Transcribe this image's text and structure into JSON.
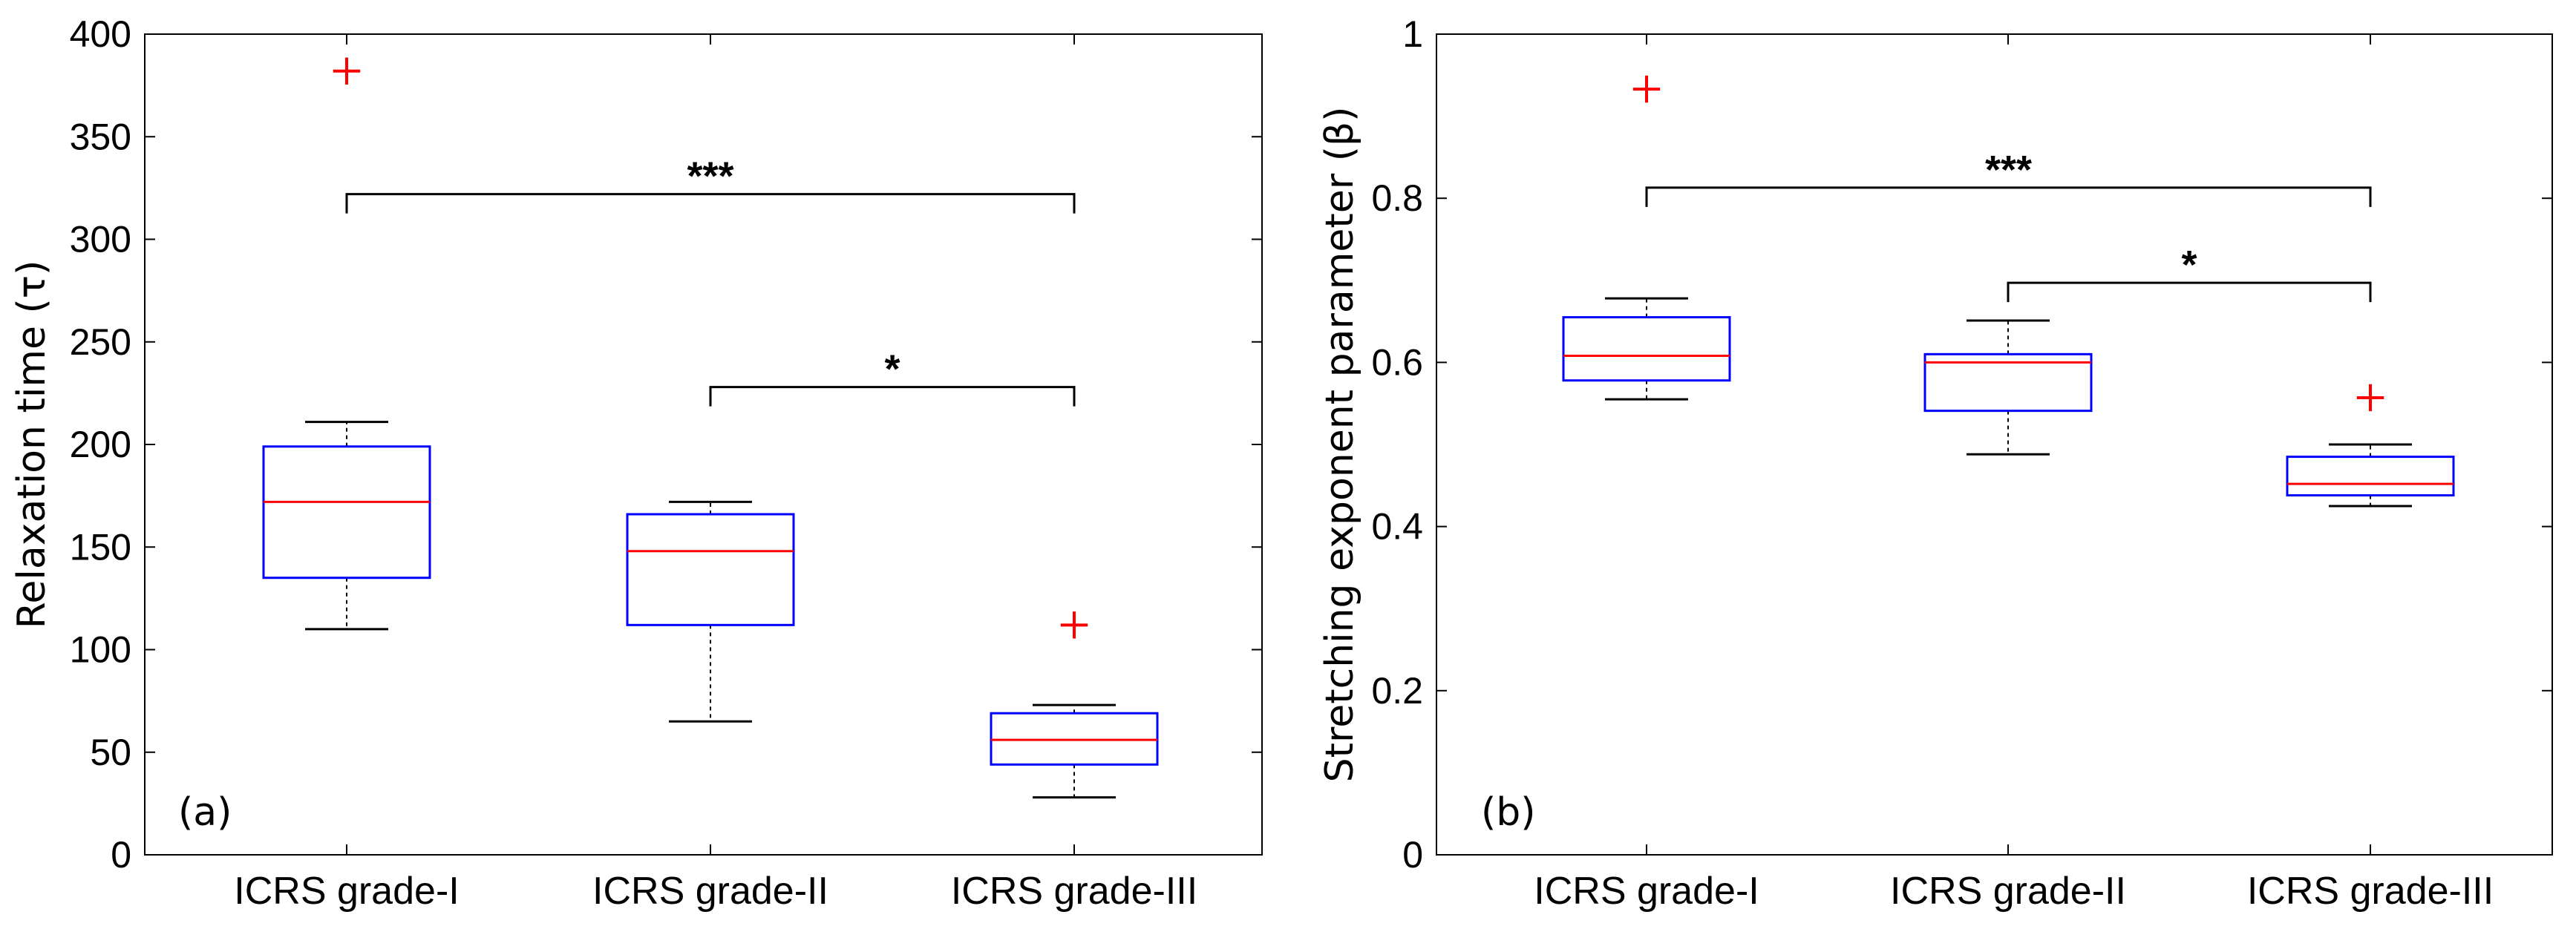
{
  "chart_data": [
    {
      "type": "boxplot",
      "panel_label": "(a)",
      "ylabel": "Relaxation time (τ)",
      "xlabel": "",
      "ylim": [
        0,
        400
      ],
      "yticks": [
        0,
        50,
        100,
        150,
        200,
        250,
        300,
        350,
        400
      ],
      "categories": [
        "ICRS grade-I",
        "ICRS grade-II",
        "ICRS grade-III"
      ],
      "boxes": [
        {
          "category": "ICRS grade-I",
          "whisker_low": 110,
          "q1": 135,
          "median": 172,
          "q3": 199,
          "whisker_high": 211,
          "outliers": [
            382
          ]
        },
        {
          "category": "ICRS grade-II",
          "whisker_low": 65,
          "q1": 112,
          "median": 148,
          "q3": 166,
          "whisker_high": 172,
          "outliers": []
        },
        {
          "category": "ICRS grade-III",
          "whisker_low": 28,
          "q1": 44,
          "median": 56,
          "q3": 69,
          "whisker_high": 73,
          "outliers": [
            112
          ]
        }
      ],
      "significance": [
        {
          "from": 0,
          "to": 2,
          "level": 322,
          "label": "***"
        },
        {
          "from": 1,
          "to": 2,
          "level": 228,
          "label": "*"
        }
      ],
      "colors": {
        "box": "#0000ff",
        "median": "#ff0000",
        "outlier": "#ff0000",
        "whisker": "#000000"
      }
    },
    {
      "type": "boxplot",
      "panel_label": "(b)",
      "ylabel": "Stretching exponent parameter (β)",
      "xlabel": "",
      "ylim": [
        0,
        1
      ],
      "yticks": [
        0,
        0.2,
        0.4,
        0.6,
        0.8,
        1
      ],
      "ytick_labels": [
        "0",
        "0.2",
        "0.4",
        "0.6",
        "0.8",
        "1"
      ],
      "categories": [
        "ICRS grade-I",
        "ICRS grade-II",
        "ICRS grade-III"
      ],
      "boxes": [
        {
          "category": "ICRS grade-I",
          "whisker_low": 0.555,
          "q1": 0.578,
          "median": 0.608,
          "q3": 0.655,
          "whisker_high": 0.678,
          "outliers": [
            0.933
          ]
        },
        {
          "category": "ICRS grade-II",
          "whisker_low": 0.488,
          "q1": 0.541,
          "median": 0.6,
          "q3": 0.61,
          "whisker_high": 0.651,
          "outliers": []
        },
        {
          "category": "ICRS grade-III",
          "whisker_low": 0.425,
          "q1": 0.438,
          "median": 0.452,
          "q3": 0.485,
          "whisker_high": 0.5,
          "outliers": [
            0.557
          ]
        }
      ],
      "significance": [
        {
          "from": 0,
          "to": 2,
          "level": 0.813,
          "label": "***"
        },
        {
          "from": 1,
          "to": 2,
          "level": 0.697,
          "label": "*"
        }
      ],
      "colors": {
        "box": "#0000ff",
        "median": "#ff0000",
        "outlier": "#ff0000",
        "whisker": "#000000"
      }
    }
  ]
}
